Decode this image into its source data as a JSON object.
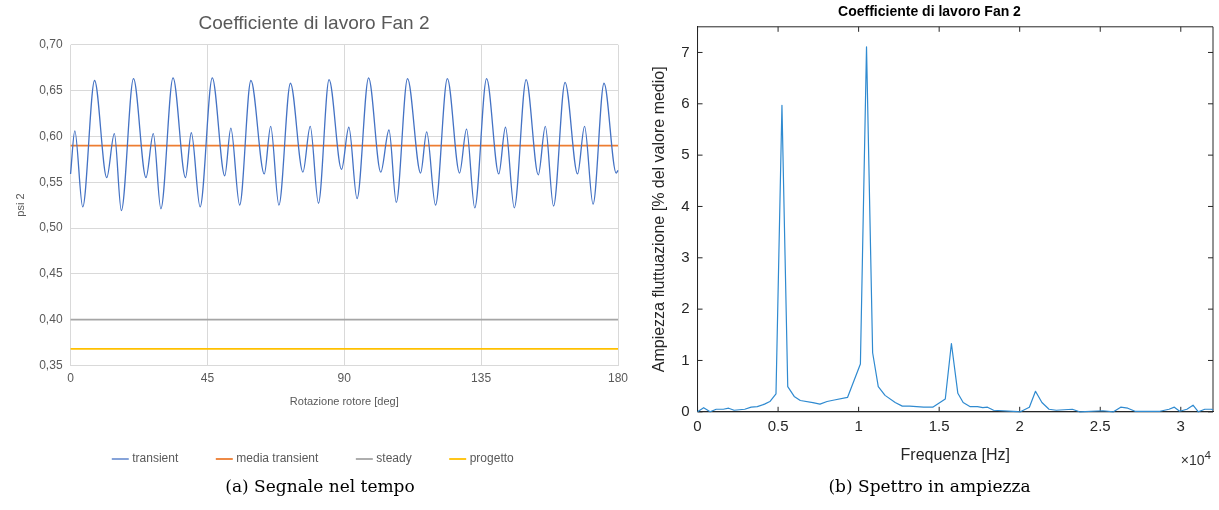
{
  "chart_data": [
    {
      "type": "line",
      "title": "Coefficiente di lavoro Fan 2",
      "xlabel": "Rotazione rotore [deg]",
      "ylabel": "psi 2",
      "xlim": [
        0,
        180
      ],
      "xticks": [
        0,
        45,
        90,
        135,
        180
      ],
      "ylim": [
        0.35,
        0.7
      ],
      "yticks": [
        {
          "value": 0.35,
          "label": "0,35"
        },
        {
          "value": 0.4,
          "label": "0,40"
        },
        {
          "value": 0.45,
          "label": "0,45"
        },
        {
          "value": 0.5,
          "label": "0,50"
        },
        {
          "value": 0.55,
          "label": "0,55"
        },
        {
          "value": 0.6,
          "label": "0,60"
        },
        {
          "value": 0.65,
          "label": "0,65"
        },
        {
          "value": 0.7,
          "label": "0,70"
        }
      ],
      "grid": true,
      "legend": "bottom",
      "series": [
        {
          "name": "transient",
          "color": "#4472c4",
          "x": [
            0,
            1.4,
            4.0,
            7.9,
            11.9,
            14.4,
            16.7,
            20.7,
            24.8,
            27.2,
            29.7,
            33.7,
            37.8,
            39.7,
            42.6,
            46.6,
            50.7,
            52.7,
            55.6,
            59.3,
            63.7,
            65.8,
            68.5,
            72.3,
            76.4,
            78.8,
            81.5,
            85.0,
            89.1,
            91.5,
            94.2,
            98.0,
            102.0,
            104.7,
            107.1,
            110.8,
            115.1,
            117.1,
            120.0,
            123.9,
            127.9,
            130.2,
            132.9,
            136.8,
            140.8,
            143.0,
            145.9,
            149.8,
            153.8,
            156.1,
            158.8,
            162.6,
            166.7,
            169.0,
            171.8,
            175.4,
            179.4,
            180
          ],
          "values": [
            0.559,
            0.606,
            0.523,
            0.661,
            0.555,
            0.603,
            0.519,
            0.663,
            0.555,
            0.603,
            0.521,
            0.664,
            0.555,
            0.604,
            0.523,
            0.664,
            0.557,
            0.609,
            0.525,
            0.661,
            0.559,
            0.611,
            0.525,
            0.658,
            0.561,
            0.611,
            0.527,
            0.662,
            0.564,
            0.61,
            0.532,
            0.664,
            0.561,
            0.607,
            0.528,
            0.663,
            0.56,
            0.605,
            0.525,
            0.663,
            0.56,
            0.608,
            0.522,
            0.663,
            0.559,
            0.61,
            0.522,
            0.662,
            0.558,
            0.611,
            0.524,
            0.659,
            0.559,
            0.611,
            0.526,
            0.658,
            0.56,
            0.563
          ]
        },
        {
          "name": "media transient",
          "color": "#ed7d31",
          "x": [
            0,
            180
          ],
          "values": [
            0.59,
            0.59
          ]
        },
        {
          "name": "steady",
          "color": "#a5a5a5",
          "x": [
            0,
            180
          ],
          "values": [
            0.4,
            0.4
          ]
        },
        {
          "name": "progetto",
          "color": "#ffc000",
          "x": [
            0,
            180
          ],
          "values": [
            0.368,
            0.368
          ]
        }
      ],
      "annotations": [
        "(a) Segnale nel tempo"
      ]
    },
    {
      "type": "line",
      "title": "Coefficiente di lavoro Fan 2",
      "xlabel": "Frequenza [Hz]",
      "ylabel": "Ampiezza fluttuazione [% del valore medio]",
      "xlim": [
        0,
        3.2
      ],
      "xticks": [
        0,
        0.5,
        1,
        1.5,
        2,
        2.5,
        3
      ],
      "ylim": [
        0,
        7.5
      ],
      "yticks": [
        0,
        1,
        2,
        3,
        4,
        5,
        6,
        7
      ],
      "series": [
        {
          "color": "#2f8ad0",
          "x": [
            0,
            0.038,
            0.078,
            0.116,
            0.16,
            0.193,
            0.227,
            0.293,
            0.333,
            0.371,
            0.416,
            0.449,
            0.487,
            0.524,
            0.56,
            0.6,
            0.638,
            0.716,
            0.76,
            0.804,
            0.849,
            0.931,
            1.011,
            1.049,
            1.087,
            1.122,
            1.164,
            1.227,
            1.271,
            1.316,
            1.404,
            1.46,
            1.538,
            1.576,
            1.616,
            1.649,
            1.693,
            1.738,
            1.771,
            1.8,
            1.838,
            1.96,
            2.004,
            2.06,
            2.098,
            2.138,
            2.182,
            2.227,
            2.327,
            2.371,
            2.516,
            2.582,
            2.627,
            2.671,
            2.716,
            2.871,
            2.927,
            2.96,
            2.993,
            3.038,
            3.076,
            3.109,
            3.149,
            3.193,
            3.2
          ],
          "values": [
            0,
            0.08,
            0,
            0.05,
            0.05,
            0.07,
            0.03,
            0.05,
            0.09,
            0.1,
            0.15,
            0.2,
            0.35,
            5.97,
            0.49,
            0.3,
            0.22,
            0.18,
            0.15,
            0.2,
            0.23,
            0.28,
            0.93,
            7.11,
            1.15,
            0.49,
            0.32,
            0.18,
            0.11,
            0.11,
            0.09,
            0.09,
            0.25,
            1.33,
            0.36,
            0.18,
            0.1,
            0.1,
            0.08,
            0.09,
            0.03,
            0.01,
            0,
            0.09,
            0.4,
            0.18,
            0.05,
            0.03,
            0.05,
            0,
            0.02,
            0,
            0.09,
            0.07,
            0.01,
            0.01,
            0.05,
            0.09,
            0.01,
            0.05,
            0.13,
            0,
            0.05,
            0.05,
            0.03
          ]
        }
      ],
      "annotations": [
        "×10$^{4}$",
        "(b) Spettro in ampiezza"
      ]
    }
  ]
}
